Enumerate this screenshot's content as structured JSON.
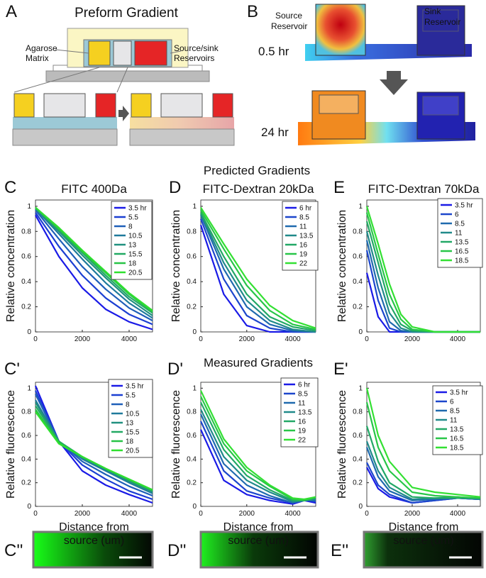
{
  "figure": {
    "panel_labels": [
      "A",
      "B",
      "C",
      "D",
      "E",
      "C'",
      "D'",
      "E'",
      "C''",
      "D''",
      "E''"
    ],
    "a_title": "Preform Gradient",
    "a_matrix": [
      "Agarose",
      "Matrix"
    ],
    "a_reservoirs": [
      "Source/sink",
      "Reservoirs"
    ],
    "b_source": [
      "Source",
      "Reservoir"
    ],
    "b_sink": [
      "Sink",
      "Reservoir"
    ],
    "b_times": [
      "0.5 hr",
      "24 hr"
    ],
    "predicted": "Predicted Gradients",
    "measured": "Measured Gradients"
  },
  "chart_data": [
    {
      "type": "line",
      "title": "FITC 400Da",
      "ylabel": "Relative concentration",
      "x": [
        0,
        1000,
        2000,
        3000,
        4000,
        5000
      ],
      "xlim": [
        0,
        5000
      ],
      "ylim": [
        0,
        1.05
      ],
      "xticks": [
        0,
        2000,
        4000
      ],
      "yticks": [
        0,
        0.2,
        0.4,
        0.6,
        0.8,
        1
      ],
      "series": [
        {
          "name": "3.5 hr",
          "color": "#1a1ae6",
          "values": [
            0.93,
            0.6,
            0.35,
            0.18,
            0.08,
            0.02
          ]
        },
        {
          "name": "5.5",
          "color": "#1b3fd2",
          "values": [
            0.95,
            0.68,
            0.45,
            0.27,
            0.14,
            0.06
          ]
        },
        {
          "name": "8",
          "color": "#1e5fb8",
          "values": [
            0.97,
            0.74,
            0.52,
            0.34,
            0.19,
            0.09
          ]
        },
        {
          "name": "10.5",
          "color": "#1f7a9c",
          "values": [
            0.98,
            0.78,
            0.58,
            0.39,
            0.23,
            0.11
          ]
        },
        {
          "name": "13",
          "color": "#20907f",
          "values": [
            0.98,
            0.8,
            0.61,
            0.43,
            0.26,
            0.13
          ]
        },
        {
          "name": "15.5",
          "color": "#22a963",
          "values": [
            0.99,
            0.81,
            0.63,
            0.45,
            0.28,
            0.15
          ]
        },
        {
          "name": "18",
          "color": "#27c446",
          "values": [
            0.99,
            0.82,
            0.64,
            0.47,
            0.3,
            0.16
          ]
        },
        {
          "name": "20.5",
          "color": "#2ee02e",
          "values": [
            0.99,
            0.83,
            0.65,
            0.48,
            0.31,
            0.17
          ]
        }
      ]
    },
    {
      "type": "line",
      "title": "FITC-Dextran 20kDa",
      "ylabel": "Relative concentration",
      "x": [
        0,
        1000,
        2000,
        3000,
        4000,
        5000
      ],
      "xlim": [
        0,
        5000
      ],
      "ylim": [
        0,
        1.05
      ],
      "xticks": [
        0,
        2000,
        4000
      ],
      "yticks": [
        0,
        0.2,
        0.4,
        0.6,
        0.8,
        1
      ],
      "series": [
        {
          "name": "6 hr",
          "color": "#1a1ae6",
          "values": [
            0.85,
            0.3,
            0.05,
            0,
            0,
            0
          ]
        },
        {
          "name": "8.5",
          "color": "#1c46cc",
          "values": [
            0.9,
            0.42,
            0.13,
            0.03,
            0,
            0
          ]
        },
        {
          "name": "11",
          "color": "#1f6aae",
          "values": [
            0.93,
            0.5,
            0.2,
            0.06,
            0.01,
            0
          ]
        },
        {
          "name": "13.5",
          "color": "#208a8a",
          "values": [
            0.94,
            0.55,
            0.25,
            0.09,
            0.02,
            0
          ]
        },
        {
          "name": "16",
          "color": "#22a866",
          "values": [
            0.95,
            0.6,
            0.3,
            0.12,
            0.04,
            0.01
          ]
        },
        {
          "name": "19",
          "color": "#28c648",
          "values": [
            0.97,
            0.66,
            0.37,
            0.17,
            0.06,
            0.02
          ]
        },
        {
          "name": "22",
          "color": "#33e033",
          "values": [
            0.99,
            0.7,
            0.42,
            0.21,
            0.09,
            0.03
          ]
        }
      ]
    },
    {
      "type": "line",
      "title": "FITC-Dextran 70kDa",
      "ylabel": "Relative concentration",
      "x": [
        0,
        500,
        1000,
        1500,
        2000,
        3000,
        4000,
        5000
      ],
      "xlim": [
        0,
        5000
      ],
      "ylim": [
        0,
        1.05
      ],
      "xticks": [
        0,
        2000,
        4000
      ],
      "yticks": [
        0,
        0.2,
        0.4,
        0.6,
        0.8,
        1
      ],
      "series": [
        {
          "name": "3.5 hr",
          "color": "#1a1ae6",
          "values": [
            0.47,
            0.12,
            0,
            0,
            0,
            0,
            0,
            0
          ]
        },
        {
          "name": "6",
          "color": "#1c46cc",
          "values": [
            0.65,
            0.25,
            0.03,
            0,
            0,
            0,
            0,
            0
          ]
        },
        {
          "name": "8.5",
          "color": "#1f6aae",
          "values": [
            0.73,
            0.35,
            0.08,
            0.01,
            0,
            0,
            0,
            0
          ]
        },
        {
          "name": "11",
          "color": "#208a8a",
          "values": [
            0.8,
            0.45,
            0.15,
            0.03,
            0,
            0,
            0,
            0
          ]
        },
        {
          "name": "13.5",
          "color": "#22a866",
          "values": [
            0.88,
            0.55,
            0.22,
            0.06,
            0.01,
            0,
            0,
            0
          ]
        },
        {
          "name": "16.5",
          "color": "#28c648",
          "values": [
            0.95,
            0.62,
            0.3,
            0.1,
            0.02,
            0,
            0,
            0
          ]
        },
        {
          "name": "18.5",
          "color": "#33e033",
          "values": [
            1,
            0.7,
            0.38,
            0.14,
            0.04,
            0,
            0,
            0
          ]
        }
      ]
    },
    {
      "type": "line",
      "ylabel": "Relative fluorescence",
      "xlabel": [
        "Distance from",
        "source (um)"
      ],
      "x": [
        0,
        1000,
        2000,
        3000,
        4000,
        5000
      ],
      "xlim": [
        0,
        5000
      ],
      "ylim": [
        0,
        1.05
      ],
      "xticks": [
        0,
        2000,
        4000
      ],
      "yticks": [
        0,
        0.2,
        0.4,
        0.6,
        0.8,
        1
      ],
      "series": [
        {
          "name": "3.5 hr",
          "color": "#1a1ae6",
          "values": [
            1.02,
            0.55,
            0.3,
            0.18,
            0.1,
            0.03
          ]
        },
        {
          "name": "5.5",
          "color": "#1b3fd2",
          "values": [
            0.98,
            0.55,
            0.35,
            0.23,
            0.13,
            0.06
          ]
        },
        {
          "name": "8",
          "color": "#1e5fb8",
          "values": [
            0.95,
            0.55,
            0.38,
            0.27,
            0.17,
            0.09
          ]
        },
        {
          "name": "10.5",
          "color": "#1f7a9c",
          "values": [
            0.9,
            0.55,
            0.4,
            0.3,
            0.2,
            0.11
          ]
        },
        {
          "name": "13",
          "color": "#20907f",
          "values": [
            0.88,
            0.55,
            0.41,
            0.31,
            0.21,
            0.12
          ]
        },
        {
          "name": "15.5",
          "color": "#22a963",
          "values": [
            0.85,
            0.55,
            0.42,
            0.32,
            0.22,
            0.13
          ]
        },
        {
          "name": "18",
          "color": "#27c446",
          "values": [
            0.82,
            0.54,
            0.42,
            0.32,
            0.23,
            0.14
          ]
        },
        {
          "name": "20.5",
          "color": "#2ee02e",
          "values": [
            0.8,
            0.53,
            0.42,
            0.32,
            0.23,
            0.14
          ]
        }
      ]
    },
    {
      "type": "line",
      "ylabel": "Relative fluorescence",
      "xlabel": [
        "Distance from",
        "source (um)"
      ],
      "x": [
        0,
        1000,
        2000,
        3000,
        4000,
        4500,
        5000
      ],
      "xlim": [
        0,
        5000
      ],
      "ylim": [
        0,
        1.05
      ],
      "xticks": [
        0,
        2000,
        4000
      ],
      "yticks": [
        0,
        0.2,
        0.4,
        0.6,
        0.8,
        1
      ],
      "series": [
        {
          "name": "6 hr",
          "color": "#1a1ae6",
          "values": [
            0.65,
            0.22,
            0.1,
            0.05,
            0.02,
            0.05,
            0.03
          ]
        },
        {
          "name": "8.5",
          "color": "#1c46cc",
          "values": [
            0.72,
            0.3,
            0.13,
            0.07,
            0.03,
            0.06,
            0.04
          ]
        },
        {
          "name": "11",
          "color": "#1f6aae",
          "values": [
            0.78,
            0.36,
            0.18,
            0.09,
            0.03,
            0.05,
            0.05
          ]
        },
        {
          "name": "13.5",
          "color": "#208a8a",
          "values": [
            0.82,
            0.42,
            0.22,
            0.12,
            0.04,
            0.05,
            0.06
          ]
        },
        {
          "name": "16",
          "color": "#22a866",
          "values": [
            0.88,
            0.48,
            0.26,
            0.14,
            0.05,
            0.05,
            0.07
          ]
        },
        {
          "name": "19",
          "color": "#28c648",
          "values": [
            0.93,
            0.53,
            0.3,
            0.17,
            0.06,
            0.05,
            0.08
          ]
        },
        {
          "name": "22",
          "color": "#33e033",
          "values": [
            0.98,
            0.57,
            0.33,
            0.18,
            0.07,
            0.06,
            0.08
          ]
        }
      ]
    },
    {
      "type": "line",
      "ylabel": "Relative fluorescence",
      "xlabel": [
        "Distance from",
        "source (um)"
      ],
      "x": [
        0,
        500,
        1000,
        2000,
        3000,
        4000,
        5000
      ],
      "xlim": [
        0,
        5000
      ],
      "ylim": [
        0,
        1.05
      ],
      "xticks": [
        0,
        2000,
        4000
      ],
      "yticks": [
        0,
        0.2,
        0.4,
        0.6,
        0.8,
        1
      ],
      "series": [
        {
          "name": "3.5 hr",
          "color": "#1a1ae6",
          "values": [
            0.33,
            0.15,
            0.08,
            0.03,
            0.05,
            0.07,
            0.06
          ]
        },
        {
          "name": "6",
          "color": "#1c46cc",
          "values": [
            0.37,
            0.18,
            0.1,
            0.03,
            0.05,
            0.07,
            0.06
          ]
        },
        {
          "name": "8.5",
          "color": "#1f6aae",
          "values": [
            0.5,
            0.25,
            0.13,
            0.05,
            0.06,
            0.07,
            0.06
          ]
        },
        {
          "name": "11",
          "color": "#208a8a",
          "values": [
            0.55,
            0.3,
            0.16,
            0.06,
            0.07,
            0.08,
            0.06
          ]
        },
        {
          "name": "13.5",
          "color": "#22a866",
          "values": [
            0.68,
            0.38,
            0.2,
            0.08,
            0.07,
            0.07,
            0.07
          ]
        },
        {
          "name": "16.5",
          "color": "#28c648",
          "values": [
            0.88,
            0.5,
            0.3,
            0.12,
            0.09,
            0.08,
            0.07
          ]
        },
        {
          "name": "18.5",
          "color": "#33e033",
          "values": [
            1,
            0.6,
            0.38,
            0.16,
            0.12,
            0.1,
            0.08
          ]
        }
      ]
    }
  ]
}
